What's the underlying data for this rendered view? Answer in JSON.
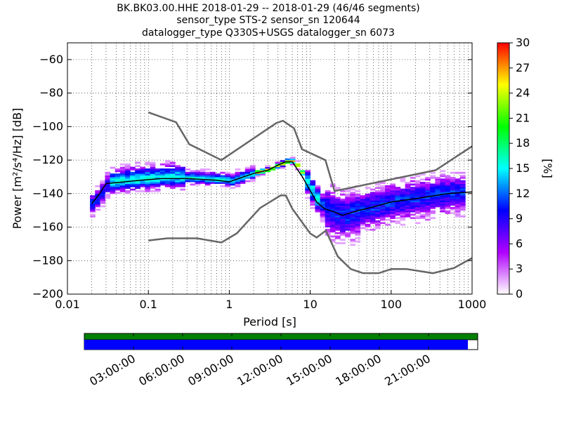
{
  "chart_data": {
    "type": "heatmap",
    "title_lines": [
      "BK.BK03.00.HHE   2018-01-29 -- 2018-01-29  (46/46 segments)",
      "sensor_type STS-2 sensor_sn 120644",
      "datalogger_type Q330S+USGS datalogger_sn 6073"
    ],
    "xlabel": "Period [s]",
    "ylabel": "Power [m²/s⁴/Hz] [dB]",
    "x_scale": "log",
    "xlim": [
      0.01,
      1000
    ],
    "ylim": [
      -200,
      -50
    ],
    "x_ticks": [
      {
        "value": 0.01,
        "label": "0.01"
      },
      {
        "value": 0.1,
        "label": "0.1"
      },
      {
        "value": 1,
        "label": "1"
      },
      {
        "value": 10,
        "label": "10"
      },
      {
        "value": 100,
        "label": "100"
      },
      {
        "value": 1000,
        "label": "1000"
      }
    ],
    "y_ticks": [
      -60,
      -80,
      -100,
      -120,
      -140,
      -160,
      -180,
      -200
    ],
    "grid": "dotted",
    "colorbar": {
      "label": "[%]",
      "min": 0,
      "max": 30,
      "ticks": [
        0,
        3,
        6,
        9,
        12,
        15,
        18,
        21,
        24,
        27,
        30
      ],
      "colormap": [
        "#ffffff",
        "#b000ff",
        "#0000ff",
        "#00ffff",
        "#00ff00",
        "#ffff00",
        "#ff0000"
      ]
    },
    "noise_model_high": {
      "name": "NHNM",
      "color": "#666666",
      "points": [
        [
          0.1,
          -91.5
        ],
        [
          0.22,
          -97.4
        ],
        [
          0.32,
          -110.5
        ],
        [
          0.8,
          -120
        ],
        [
          3.8,
          -97.9
        ],
        [
          4.6,
          -96.5
        ],
        [
          6.3,
          -101
        ],
        [
          7.9,
          -113.5
        ],
        [
          15.4,
          -120
        ],
        [
          20,
          -138.5
        ],
        [
          354.8,
          -126
        ],
        [
          10000,
          -80.1
        ]
      ]
    },
    "noise_model_low": {
      "name": "NLNM",
      "color": "#666666",
      "points": [
        [
          0.1,
          -168
        ],
        [
          0.17,
          -166.7
        ],
        [
          0.4,
          -166.7
        ],
        [
          0.8,
          -169.2
        ],
        [
          1.24,
          -163.7
        ],
        [
          2.4,
          -148.6
        ],
        [
          4.3,
          -141.1
        ],
        [
          5,
          -141.1
        ],
        [
          6,
          -149
        ],
        [
          10,
          -163.8
        ],
        [
          12,
          -166.2
        ],
        [
          15.6,
          -162.1
        ],
        [
          21.9,
          -177.5
        ],
        [
          31.6,
          -185
        ],
        [
          45,
          -187.5
        ],
        [
          70,
          -187.5
        ],
        [
          101,
          -185
        ],
        [
          154,
          -185
        ],
        [
          328,
          -187.5
        ],
        [
          600,
          -184.4
        ],
        [
          10000,
          -151.5
        ]
      ]
    },
    "series": [
      {
        "name": "mode",
        "color": "#000000",
        "points": [
          [
            0.02,
            -146
          ],
          [
            0.025,
            -140
          ],
          [
            0.03,
            -134
          ],
          [
            0.05,
            -133
          ],
          [
            0.08,
            -132
          ],
          [
            0.15,
            -131
          ],
          [
            0.3,
            -131
          ],
          [
            0.7,
            -132
          ],
          [
            1,
            -133
          ],
          [
            1.5,
            -130
          ],
          [
            2,
            -128
          ],
          [
            3,
            -126
          ],
          [
            4,
            -123
          ],
          [
            5,
            -121
          ],
          [
            6,
            -121
          ],
          [
            8,
            -130
          ],
          [
            12,
            -145
          ],
          [
            15,
            -149
          ],
          [
            20,
            -151
          ],
          [
            25,
            -153
          ],
          [
            40,
            -150
          ],
          [
            60,
            -148
          ],
          [
            100,
            -145
          ],
          [
            200,
            -143
          ],
          [
            500,
            -140
          ],
          [
            1000,
            -139
          ]
        ]
      }
    ],
    "segments": 46
  },
  "availability": {
    "x_labels": [
      "03:00:00",
      "06:00:00",
      "09:00:00",
      "12:00:00",
      "15:00:00",
      "18:00:00",
      "21:00:00"
    ],
    "data_bar_color": "#0000ff",
    "gap_bar_color": "#008000",
    "data_fraction": 0.975
  }
}
